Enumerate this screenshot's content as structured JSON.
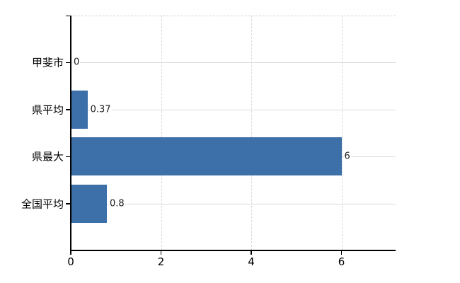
{
  "chart_data": {
    "type": "bar",
    "orientation": "horizontal",
    "title": "",
    "xlabel": "",
    "ylabel": "",
    "categories": [
      "甲斐市",
      "県平均",
      "県最大",
      "全国平均"
    ],
    "values": [
      0,
      0.37,
      6,
      0.8
    ],
    "value_labels": [
      "0",
      "0.37",
      "6",
      "0.8"
    ],
    "x_ticks": [
      0,
      2,
      4,
      6
    ],
    "x_tick_labels": [
      "0",
      "2",
      "4",
      "6"
    ],
    "xlim": [
      0,
      7.2
    ],
    "grid": true,
    "legend": false,
    "colors": {
      "bar": "#3d6fa8",
      "h_gridline": "#dcdcdc",
      "v_gridline": "#d7d7d7",
      "axis": "#000000",
      "text": "#000000",
      "background": "#ffffff"
    }
  }
}
